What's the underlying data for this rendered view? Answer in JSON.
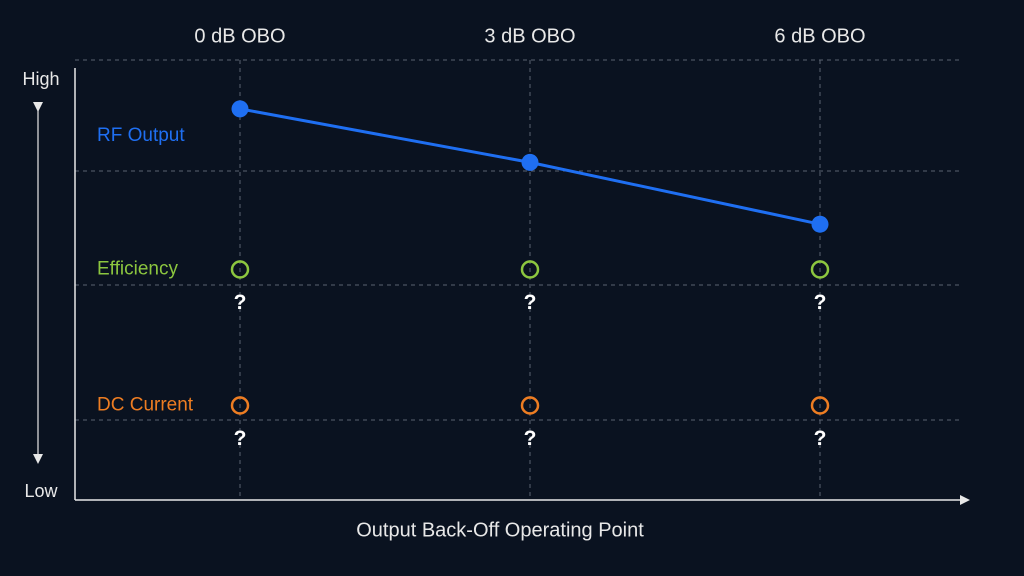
{
  "chart_data": {
    "type": "line",
    "categories": [
      "0 dB OBO",
      "3 dB OBO",
      "6 dB OBO"
    ],
    "xlabel": "Output Back-Off Operating Point",
    "ylim": [
      0,
      100
    ],
    "yticks": [
      {
        "value": 100,
        "label": "High"
      },
      {
        "value": 0,
        "label": "Low"
      }
    ],
    "series": [
      {
        "name": "RF Output",
        "color": "#1f6ff2",
        "values": [
          93,
          80,
          65
        ],
        "filled": true,
        "connected": true
      },
      {
        "name": "Efficiency",
        "color": "#8cc63f",
        "values": [
          54,
          54,
          54
        ],
        "filled": false,
        "connected": false,
        "point_labels": [
          "?",
          "?",
          "?"
        ]
      },
      {
        "name": "DC Current",
        "color": "#ee7d22",
        "values": [
          21,
          21,
          21
        ],
        "filled": false,
        "connected": false,
        "point_labels": [
          "?",
          "?",
          "?"
        ]
      }
    ]
  }
}
